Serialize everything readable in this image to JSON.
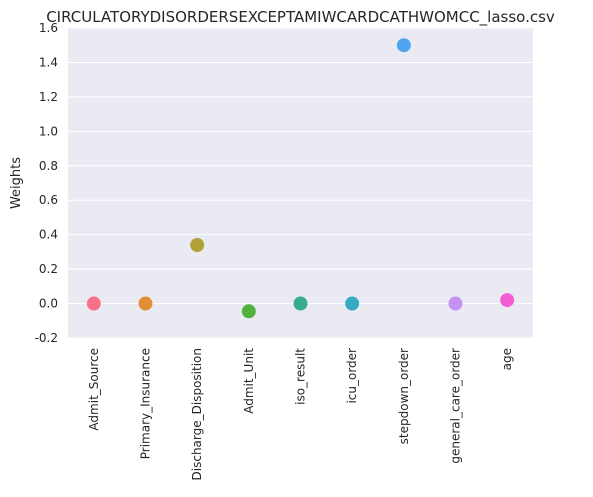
{
  "chart_data": {
    "type": "scatter",
    "title": "CIRCULATORYDISORDERSEXCEPTAMIWCARDCATHWOMCC_lasso.csv",
    "xlabel": "",
    "ylabel": "Weights",
    "categories": [
      "Admit_Source",
      "Primary_Insurance",
      "Discharge_Disposition",
      "Admit_Unit",
      "iso_result",
      "icu_order",
      "stepdown_order",
      "general_care_order",
      "age"
    ],
    "values": [
      0.0,
      0.0,
      0.34,
      -0.045,
      0.0,
      0.0,
      1.5,
      0.0,
      0.02
    ],
    "colors": [
      "#f77189",
      "#e18e35",
      "#b0a035",
      "#51b13a",
      "#36ad8d",
      "#38a9c2",
      "#4ea5f0",
      "#c591f3",
      "#f35ed5"
    ],
    "ylim": [
      -0.2,
      1.6
    ],
    "yticks": [
      "-0.2",
      "0.0",
      "0.2",
      "0.4",
      "0.6",
      "0.8",
      "1.0",
      "1.2",
      "1.4",
      "1.6"
    ],
    "grid": true,
    "background": "#eaeaf2",
    "gridColor": "#ffffff"
  }
}
